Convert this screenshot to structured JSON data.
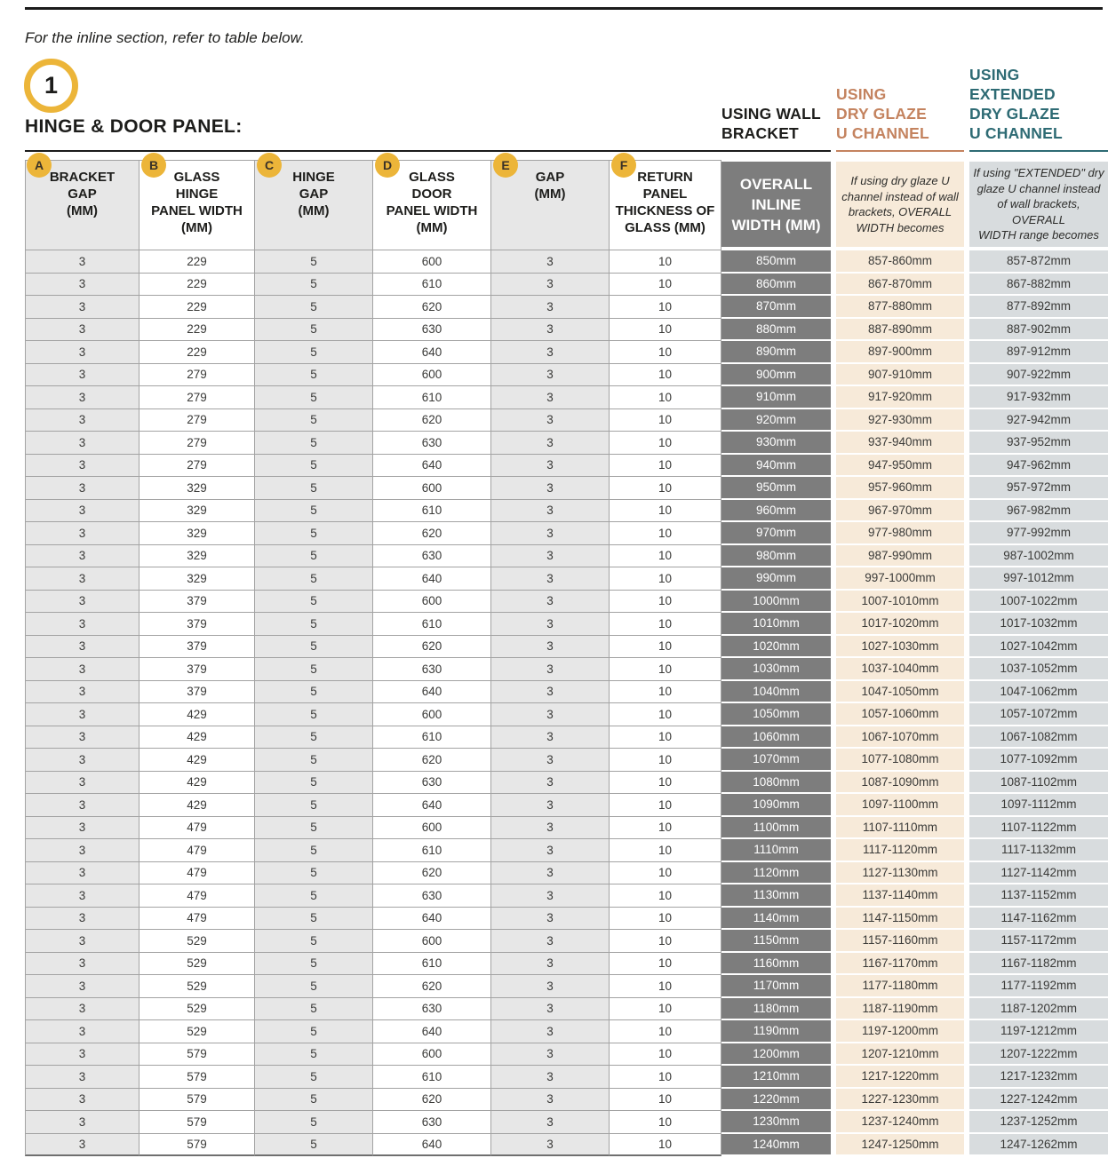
{
  "page": {
    "intro": "For the inline section, refer to table below.",
    "step_number": "1",
    "section_title": "HINGE & DOOR PANEL:"
  },
  "colors": {
    "accent_gold": "#ecb539",
    "wall_bracket_black": "#1d1d1b",
    "dry_glaze_orange": "#c4835f",
    "extended_teal": "#2e6b74",
    "overall_column_bg": "#7d7d7d",
    "dry_column_bg": "#f7ead9",
    "extended_column_bg": "#d8dcde",
    "row_gray": "#e7e7e7",
    "border_gray": "#a3a3a3"
  },
  "columns": [
    {
      "badge": "A",
      "label": "BRACKET\nGAP\n(MM)"
    },
    {
      "badge": "B",
      "label": "GLASS\nHINGE\nPANEL WIDTH\n(MM)"
    },
    {
      "badge": "C",
      "label": "HINGE\nGAP\n(MM)"
    },
    {
      "badge": "D",
      "label": "GLASS\nDOOR\nPANEL WIDTH\n(MM)"
    },
    {
      "badge": "E",
      "label": "GAP\n(MM)"
    },
    {
      "badge": "F",
      "label": "RETURN\nPANEL\nTHICKNESS OF\nGLASS (MM)"
    }
  ],
  "right_columns": {
    "overall": {
      "group": "USING WALL\nBRACKET",
      "label": "OVERALL\nINLINE\nWIDTH (MM)"
    },
    "dry": {
      "group": "USING\nDRY GLAZE\nU CHANNEL",
      "desc": "If using dry glaze U\nchannel instead of wall\nbrackets, OVERALL\nWIDTH becomes"
    },
    "extended": {
      "group": "USING\nEXTENDED\nDRY GLAZE\nU CHANNEL",
      "desc": "If using \"EXTENDED\" dry\nglaze U channel instead\nof wall brackets, OVERALL\nWIDTH range becomes"
    }
  },
  "table": {
    "rows": [
      [
        "3",
        "229",
        "5",
        "600",
        "3",
        "10",
        "850mm",
        "857-860mm",
        "857-872mm"
      ],
      [
        "3",
        "229",
        "5",
        "610",
        "3",
        "10",
        "860mm",
        "867-870mm",
        "867-882mm"
      ],
      [
        "3",
        "229",
        "5",
        "620",
        "3",
        "10",
        "870mm",
        "877-880mm",
        "877-892mm"
      ],
      [
        "3",
        "229",
        "5",
        "630",
        "3",
        "10",
        "880mm",
        "887-890mm",
        "887-902mm"
      ],
      [
        "3",
        "229",
        "5",
        "640",
        "3",
        "10",
        "890mm",
        "897-900mm",
        "897-912mm"
      ],
      [
        "3",
        "279",
        "5",
        "600",
        "3",
        "10",
        "900mm",
        "907-910mm",
        "907-922mm"
      ],
      [
        "3",
        "279",
        "5",
        "610",
        "3",
        "10",
        "910mm",
        "917-920mm",
        "917-932mm"
      ],
      [
        "3",
        "279",
        "5",
        "620",
        "3",
        "10",
        "920mm",
        "927-930mm",
        "927-942mm"
      ],
      [
        "3",
        "279",
        "5",
        "630",
        "3",
        "10",
        "930mm",
        "937-940mm",
        "937-952mm"
      ],
      [
        "3",
        "279",
        "5",
        "640",
        "3",
        "10",
        "940mm",
        "947-950mm",
        "947-962mm"
      ],
      [
        "3",
        "329",
        "5",
        "600",
        "3",
        "10",
        "950mm",
        "957-960mm",
        "957-972mm"
      ],
      [
        "3",
        "329",
        "5",
        "610",
        "3",
        "10",
        "960mm",
        "967-970mm",
        "967-982mm"
      ],
      [
        "3",
        "329",
        "5",
        "620",
        "3",
        "10",
        "970mm",
        "977-980mm",
        "977-992mm"
      ],
      [
        "3",
        "329",
        "5",
        "630",
        "3",
        "10",
        "980mm",
        "987-990mm",
        "987-1002mm"
      ],
      [
        "3",
        "329",
        "5",
        "640",
        "3",
        "10",
        "990mm",
        "997-1000mm",
        "997-1012mm"
      ],
      [
        "3",
        "379",
        "5",
        "600",
        "3",
        "10",
        "1000mm",
        "1007-1010mm",
        "1007-1022mm"
      ],
      [
        "3",
        "379",
        "5",
        "610",
        "3",
        "10",
        "1010mm",
        "1017-1020mm",
        "1017-1032mm"
      ],
      [
        "3",
        "379",
        "5",
        "620",
        "3",
        "10",
        "1020mm",
        "1027-1030mm",
        "1027-1042mm"
      ],
      [
        "3",
        "379",
        "5",
        "630",
        "3",
        "10",
        "1030mm",
        "1037-1040mm",
        "1037-1052mm"
      ],
      [
        "3",
        "379",
        "5",
        "640",
        "3",
        "10",
        "1040mm",
        "1047-1050mm",
        "1047-1062mm"
      ],
      [
        "3",
        "429",
        "5",
        "600",
        "3",
        "10",
        "1050mm",
        "1057-1060mm",
        "1057-1072mm"
      ],
      [
        "3",
        "429",
        "5",
        "610",
        "3",
        "10",
        "1060mm",
        "1067-1070mm",
        "1067-1082mm"
      ],
      [
        "3",
        "429",
        "5",
        "620",
        "3",
        "10",
        "1070mm",
        "1077-1080mm",
        "1077-1092mm"
      ],
      [
        "3",
        "429",
        "5",
        "630",
        "3",
        "10",
        "1080mm",
        "1087-1090mm",
        "1087-1102mm"
      ],
      [
        "3",
        "429",
        "5",
        "640",
        "3",
        "10",
        "1090mm",
        "1097-1100mm",
        "1097-1112mm"
      ],
      [
        "3",
        "479",
        "5",
        "600",
        "3",
        "10",
        "1100mm",
        "1107-1110mm",
        "1107-1122mm"
      ],
      [
        "3",
        "479",
        "5",
        "610",
        "3",
        "10",
        "1110mm",
        "1117-1120mm",
        "1117-1132mm"
      ],
      [
        "3",
        "479",
        "5",
        "620",
        "3",
        "10",
        "1120mm",
        "1127-1130mm",
        "1127-1142mm"
      ],
      [
        "3",
        "479",
        "5",
        "630",
        "3",
        "10",
        "1130mm",
        "1137-1140mm",
        "1137-1152mm"
      ],
      [
        "3",
        "479",
        "5",
        "640",
        "3",
        "10",
        "1140mm",
        "1147-1150mm",
        "1147-1162mm"
      ],
      [
        "3",
        "529",
        "5",
        "600",
        "3",
        "10",
        "1150mm",
        "1157-1160mm",
        "1157-1172mm"
      ],
      [
        "3",
        "529",
        "5",
        "610",
        "3",
        "10",
        "1160mm",
        "1167-1170mm",
        "1167-1182mm"
      ],
      [
        "3",
        "529",
        "5",
        "620",
        "3",
        "10",
        "1170mm",
        "1177-1180mm",
        "1177-1192mm"
      ],
      [
        "3",
        "529",
        "5",
        "630",
        "3",
        "10",
        "1180mm",
        "1187-1190mm",
        "1187-1202mm"
      ],
      [
        "3",
        "529",
        "5",
        "640",
        "3",
        "10",
        "1190mm",
        "1197-1200mm",
        "1197-1212mm"
      ],
      [
        "3",
        "579",
        "5",
        "600",
        "3",
        "10",
        "1200mm",
        "1207-1210mm",
        "1207-1222mm"
      ],
      [
        "3",
        "579",
        "5",
        "610",
        "3",
        "10",
        "1210mm",
        "1217-1220mm",
        "1217-1232mm"
      ],
      [
        "3",
        "579",
        "5",
        "620",
        "3",
        "10",
        "1220mm",
        "1227-1230mm",
        "1227-1242mm"
      ],
      [
        "3",
        "579",
        "5",
        "630",
        "3",
        "10",
        "1230mm",
        "1237-1240mm",
        "1237-1252mm"
      ],
      [
        "3",
        "579",
        "5",
        "640",
        "3",
        "10",
        "1240mm",
        "1247-1250mm",
        "1247-1262mm"
      ]
    ]
  }
}
